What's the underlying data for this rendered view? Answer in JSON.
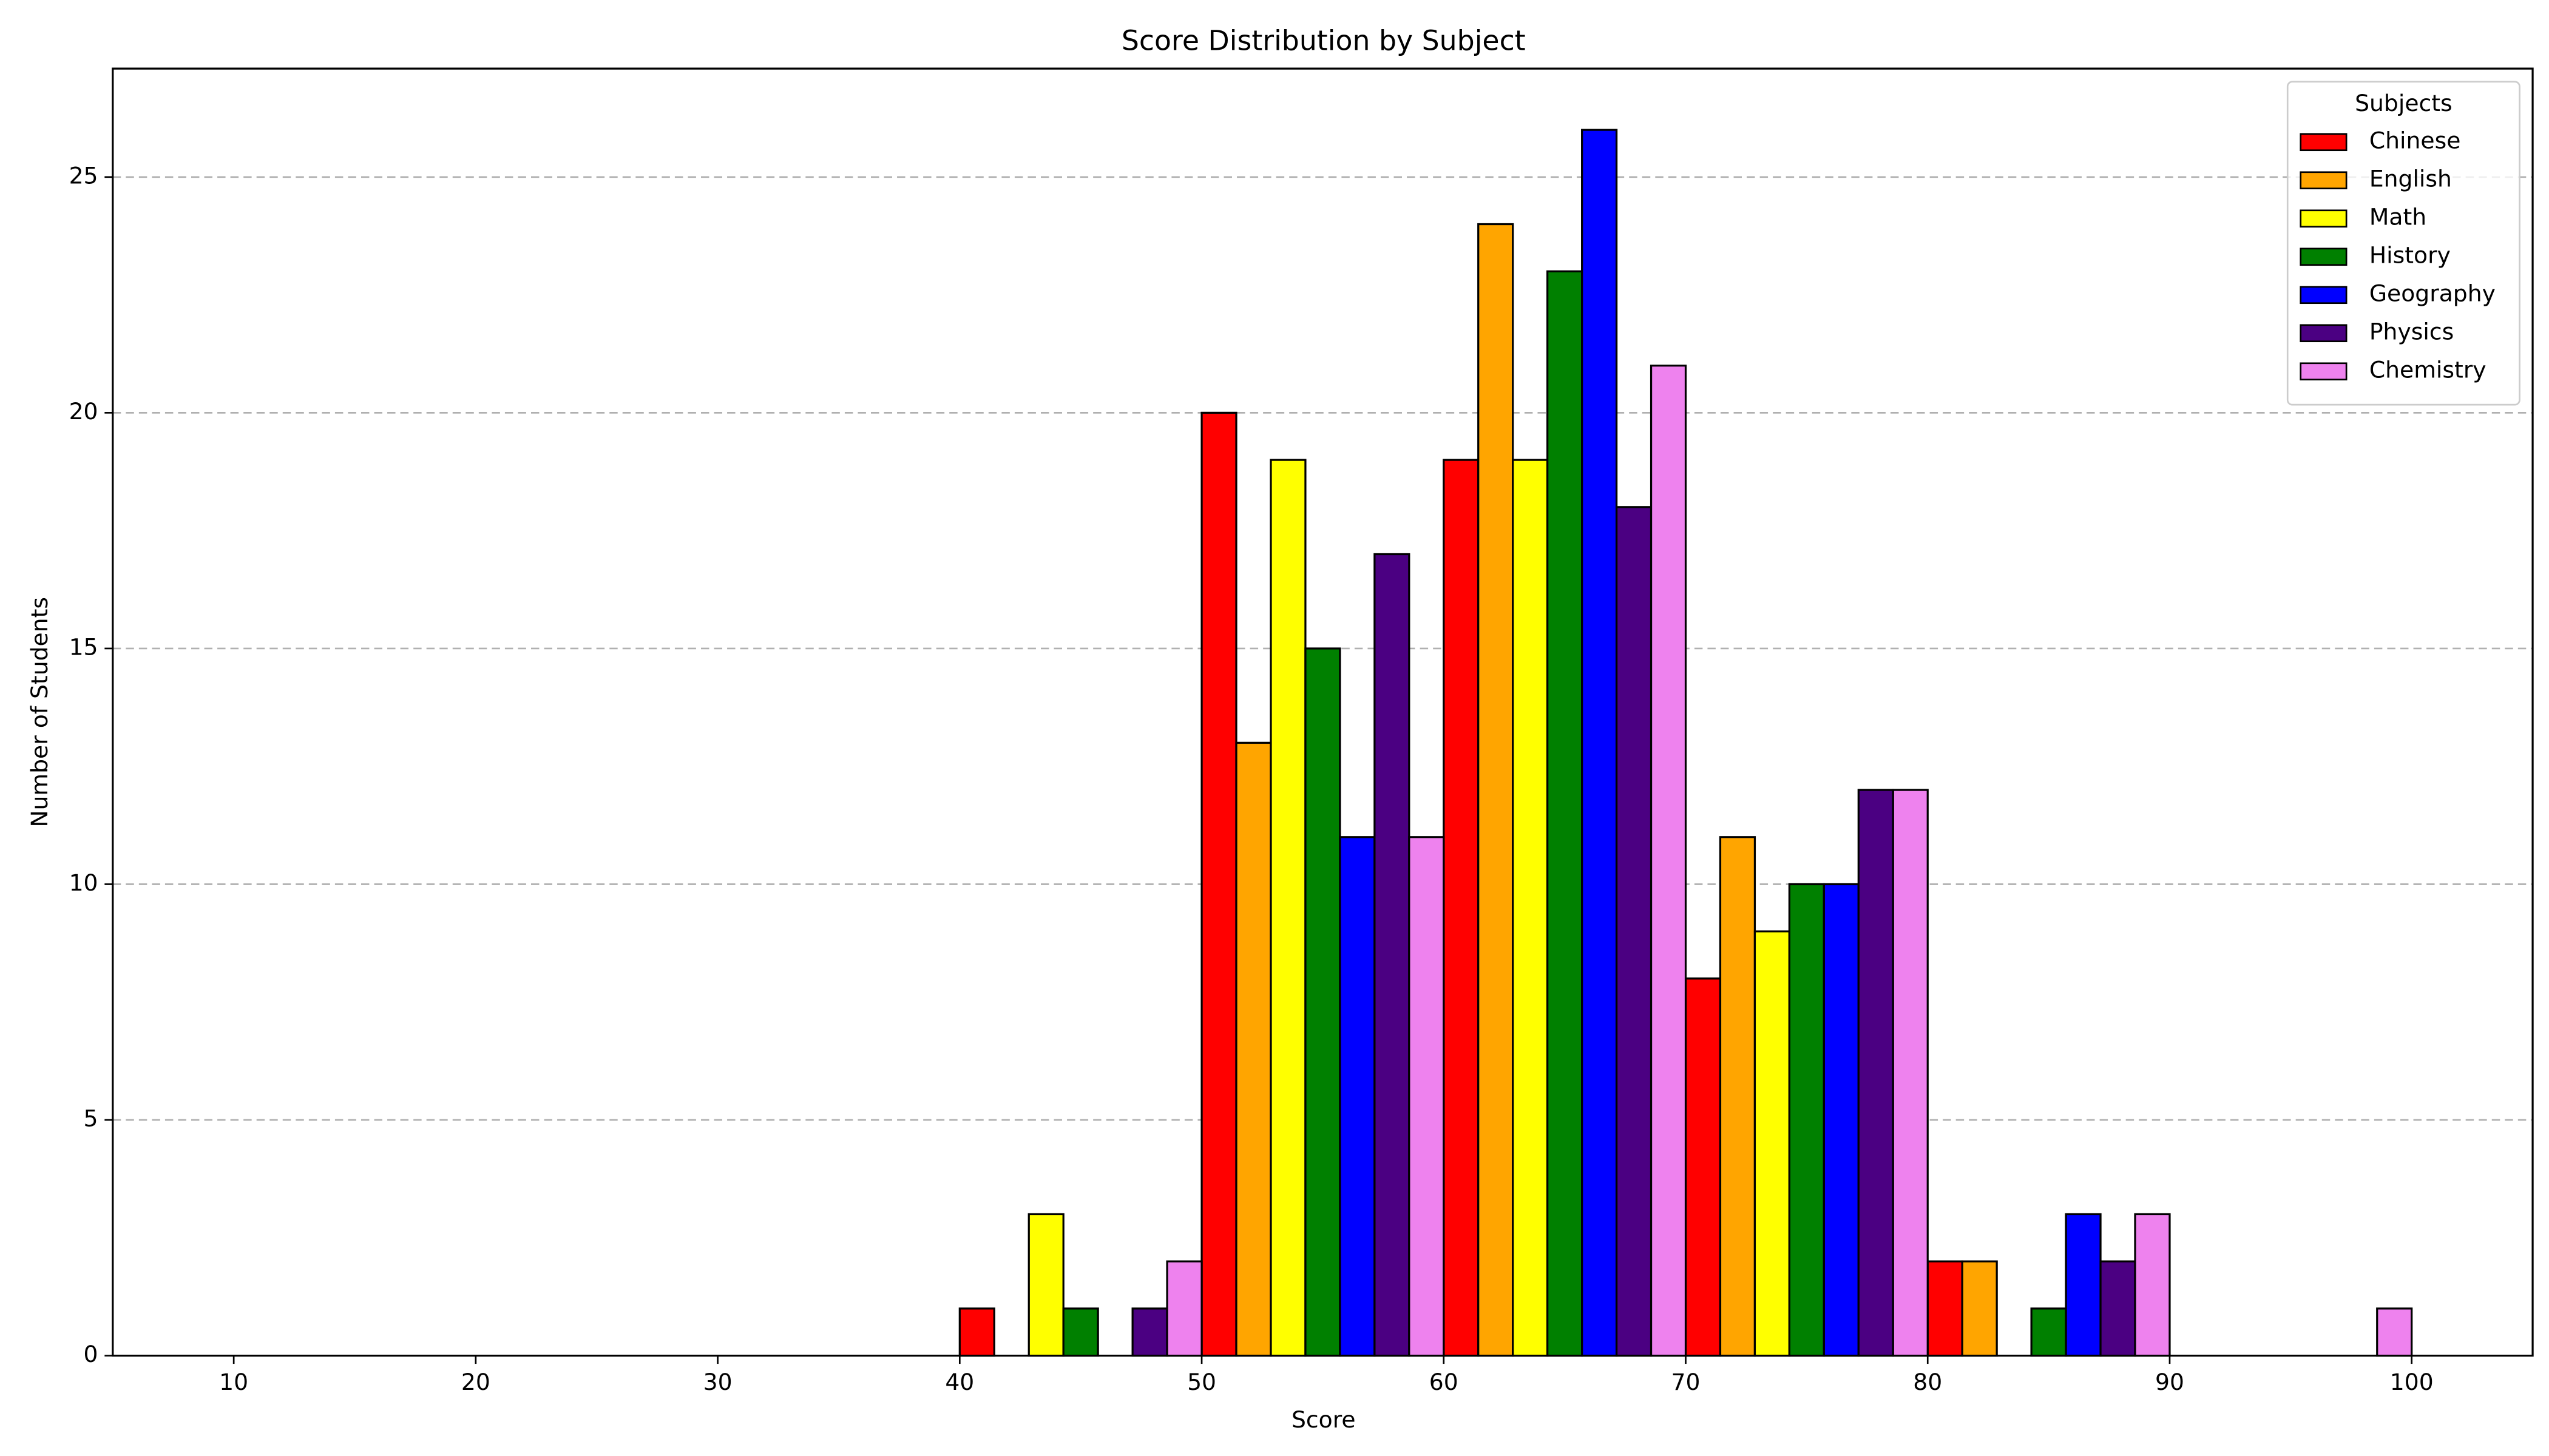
{
  "chart_data": {
    "type": "histogram",
    "title": "Score Distribution by Subject",
    "xlabel": "Score",
    "ylabel": "Number of Students",
    "bins": [
      10,
      20,
      30,
      40,
      50,
      60,
      70,
      80,
      90,
      100
    ],
    "series": [
      {
        "name": "Chinese",
        "color": "red",
        "values": [
          0,
          0,
          0,
          1,
          20,
          19,
          8,
          2,
          0
        ]
      },
      {
        "name": "English",
        "color": "orange",
        "values": [
          0,
          0,
          0,
          0,
          13,
          24,
          11,
          2,
          0
        ]
      },
      {
        "name": "Math",
        "color": "yellow",
        "values": [
          0,
          0,
          0,
          3,
          19,
          19,
          9,
          0,
          0
        ]
      },
      {
        "name": "History",
        "color": "green",
        "values": [
          0,
          0,
          0,
          1,
          15,
          23,
          10,
          1,
          0
        ]
      },
      {
        "name": "Geography",
        "color": "blue",
        "values": [
          0,
          0,
          0,
          0,
          11,
          26,
          10,
          3,
          0
        ]
      },
      {
        "name": "Physics",
        "color": "indigo",
        "values": [
          0,
          0,
          0,
          1,
          17,
          18,
          12,
          2,
          0
        ]
      },
      {
        "name": "Chemistry",
        "color": "violet",
        "values": [
          0,
          0,
          0,
          2,
          11,
          21,
          12,
          3,
          1
        ]
      }
    ],
    "xlim": [
      5,
      105
    ],
    "xticks": [
      10,
      20,
      30,
      40,
      50,
      60,
      70,
      80,
      90,
      100
    ],
    "ylim": [
      0,
      27.3
    ],
    "yticks": [
      0,
      5,
      10,
      15,
      20,
      25
    ],
    "grid": true,
    "legend_title": "Subjects",
    "legend_position": "upper right"
  }
}
